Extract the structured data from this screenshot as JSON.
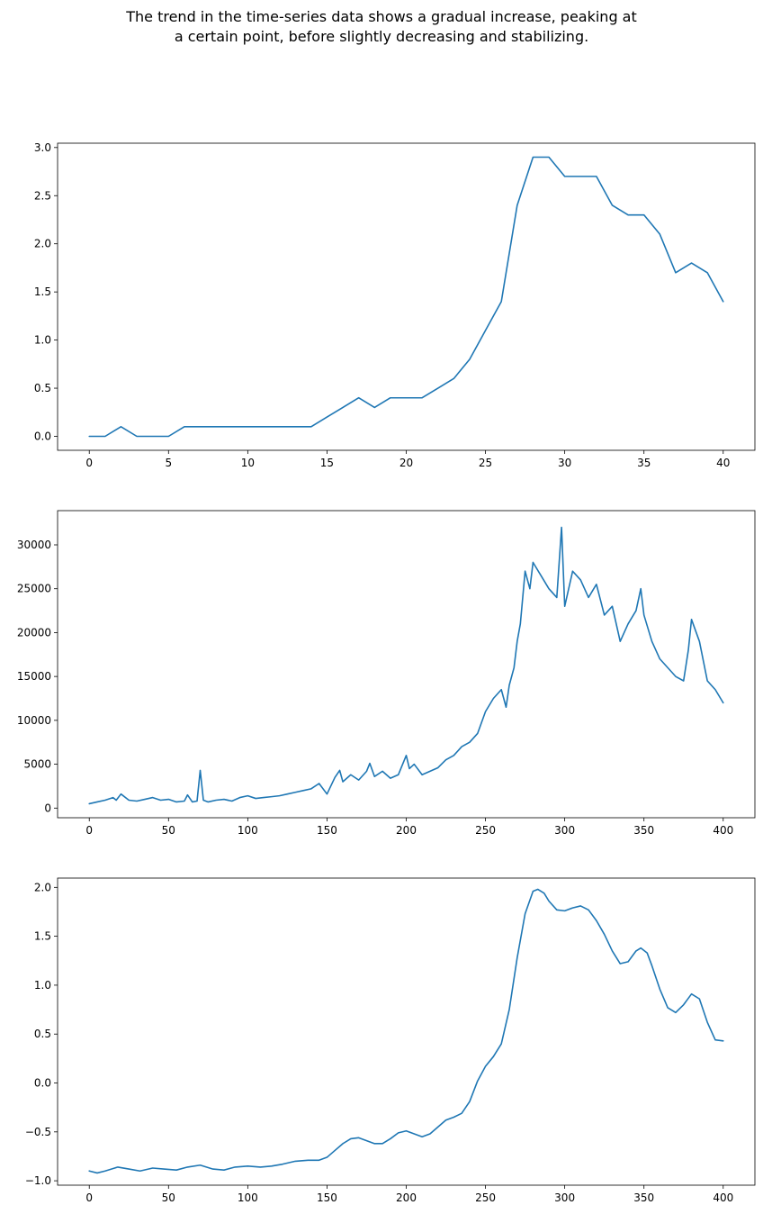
{
  "figure": {
    "title_line1": "The trend in the time-series data shows a gradual increase, peaking at",
    "title_line2": "a certain point, before slightly decreasing and stabilizing.",
    "line_color": "#1f77b4"
  },
  "chart_data": [
    {
      "type": "line",
      "title": "",
      "xlabel": "",
      "ylabel": "",
      "xlim": [
        -2,
        42
      ],
      "ylim": [
        -0.145,
        3.045
      ],
      "xticks": [
        0,
        5,
        10,
        15,
        20,
        25,
        30,
        35,
        40
      ],
      "yticks": [
        0.0,
        0.5,
        1.0,
        1.5,
        2.0,
        2.5,
        3.0
      ],
      "ytick_labels": [
        "0.0",
        "0.5",
        "1.0",
        "1.5",
        "2.0",
        "2.5",
        "3.0"
      ],
      "grid": false,
      "series": [
        {
          "x": [
            0,
            1,
            2,
            3,
            4,
            5,
            6,
            7,
            8,
            9,
            10,
            11,
            12,
            13,
            14,
            15,
            16,
            17,
            18,
            19,
            20,
            21,
            22,
            23,
            24,
            25,
            26,
            27,
            28,
            29,
            30,
            31,
            32,
            33,
            34,
            35,
            36,
            37,
            38,
            39,
            40
          ],
          "y": [
            0,
            0,
            0.1,
            0,
            0,
            0,
            0.1,
            0.1,
            0.1,
            0.1,
            0.1,
            0.1,
            0.1,
            0.1,
            0.1,
            0.2,
            0.3,
            0.4,
            0.3,
            0.4,
            0.4,
            0.4,
            0.5,
            0.6,
            0.8,
            1.1,
            1.4,
            2.4,
            2.9,
            2.9,
            2.7,
            2.7,
            2.7,
            2.4,
            2.3,
            2.3,
            2.1,
            1.7,
            1.8,
            1.7,
            1.4
          ]
        }
      ]
    },
    {
      "type": "line",
      "title": "",
      "xlabel": "",
      "ylabel": "",
      "xlim": [
        -20,
        420
      ],
      "ylim": [
        -1100,
        33900
      ],
      "xticks": [
        0,
        50,
        100,
        150,
        200,
        250,
        300,
        350,
        400
      ],
      "yticks": [
        0,
        5000,
        10000,
        15000,
        20000,
        25000,
        30000
      ],
      "ytick_labels": [
        "0",
        "5000",
        "10000",
        "15000",
        "20000",
        "25000",
        "30000"
      ],
      "grid": false,
      "series": [
        {
          "x": [
            0,
            5,
            10,
            15,
            17,
            20,
            25,
            30,
            35,
            40,
            45,
            50,
            55,
            60,
            62,
            65,
            68,
            70,
            72,
            75,
            80,
            85,
            90,
            95,
            100,
            105,
            110,
            115,
            120,
            125,
            130,
            135,
            140,
            145,
            150,
            155,
            158,
            160,
            165,
            170,
            175,
            177,
            180,
            185,
            190,
            195,
            200,
            202,
            205,
            210,
            215,
            220,
            225,
            230,
            235,
            240,
            245,
            250,
            255,
            260,
            263,
            265,
            268,
            270,
            272,
            275,
            278,
            280,
            285,
            290,
            295,
            298,
            300,
            305,
            310,
            315,
            320,
            325,
            330,
            335,
            340,
            345,
            348,
            350,
            355,
            360,
            365,
            370,
            375,
            378,
            380,
            385,
            390,
            395,
            400
          ],
          "y": [
            500,
            700,
            900,
            1200,
            900,
            1600,
            900,
            800,
            1000,
            1200,
            900,
            1000,
            700,
            800,
            1500,
            700,
            800,
            4300,
            900,
            700,
            900,
            1000,
            800,
            1200,
            1400,
            1100,
            1200,
            1300,
            1400,
            1600,
            1800,
            2000,
            2200,
            2800,
            1600,
            3500,
            4300,
            3000,
            3800,
            3200,
            4200,
            5100,
            3600,
            4200,
            3400,
            3800,
            6000,
            4500,
            5000,
            3800,
            4200,
            4600,
            5500,
            6000,
            7000,
            7500,
            8500,
            11000,
            12500,
            13500,
            11500,
            14000,
            16000,
            19000,
            21000,
            27000,
            25000,
            28000,
            26500,
            25000,
            24000,
            32000,
            23000,
            27000,
            26000,
            24000,
            25500,
            22000,
            23000,
            19000,
            21000,
            22500,
            25000,
            22000,
            19000,
            17000,
            16000,
            15000,
            14500,
            18000,
            21500,
            19000,
            14500,
            13500,
            12000
          ]
        }
      ]
    },
    {
      "type": "line",
      "title": "",
      "xlabel": "",
      "ylabel": "",
      "xlim": [
        -20,
        420
      ],
      "ylim": [
        -1.045,
        2.095
      ],
      "xticks": [
        0,
        50,
        100,
        150,
        200,
        250,
        300,
        350,
        400
      ],
      "yticks": [
        -1.0,
        -0.5,
        0.0,
        0.5,
        1.0,
        1.5,
        2.0
      ],
      "ytick_labels": [
        "−1.0",
        "−0.5",
        "0.0",
        "0.5",
        "1.0",
        "1.5",
        "2.0"
      ],
      "grid": false,
      "series": [
        {
          "x": [
            0,
            5,
            10,
            18,
            25,
            32,
            40,
            47,
            55,
            62,
            70,
            78,
            85,
            92,
            100,
            108,
            115,
            122,
            130,
            138,
            145,
            150,
            155,
            160,
            165,
            170,
            175,
            180,
            185,
            190,
            195,
            200,
            205,
            210,
            215,
            220,
            225,
            230,
            235,
            240,
            245,
            250,
            255,
            260,
            265,
            270,
            275,
            280,
            283,
            287,
            290,
            295,
            300,
            305,
            310,
            315,
            320,
            325,
            330,
            335,
            340,
            345,
            348,
            352,
            355,
            360,
            365,
            370,
            375,
            380,
            385,
            390,
            395,
            400
          ],
          "y": [
            -0.9,
            -0.92,
            -0.9,
            -0.86,
            -0.88,
            -0.9,
            -0.87,
            -0.88,
            -0.89,
            -0.86,
            -0.84,
            -0.88,
            -0.89,
            -0.86,
            -0.85,
            -0.86,
            -0.85,
            -0.83,
            -0.8,
            -0.79,
            -0.79,
            -0.76,
            -0.69,
            -0.62,
            -0.57,
            -0.56,
            -0.59,
            -0.62,
            -0.62,
            -0.57,
            -0.51,
            -0.49,
            -0.52,
            -0.55,
            -0.52,
            -0.45,
            -0.38,
            -0.35,
            -0.31,
            -0.19,
            0.02,
            0.17,
            0.27,
            0.4,
            0.75,
            1.28,
            1.73,
            1.96,
            1.98,
            1.94,
            1.86,
            1.77,
            1.76,
            1.79,
            1.81,
            1.77,
            1.66,
            1.52,
            1.35,
            1.22,
            1.24,
            1.35,
            1.38,
            1.33,
            1.2,
            0.96,
            0.77,
            0.72,
            0.8,
            0.91,
            0.86,
            0.62,
            0.44,
            0.43
          ]
        }
      ]
    }
  ]
}
